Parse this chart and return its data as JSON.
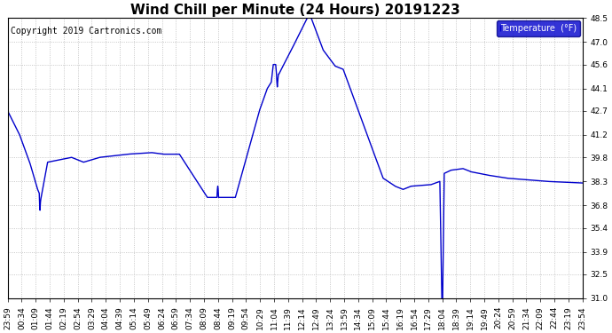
{
  "title": "Wind Chill per Minute (24 Hours) 20191223",
  "copyright": "Copyright 2019 Cartronics.com",
  "legend_label": "Temperature  (°F)",
  "legend_bg": "#0000cc",
  "legend_text_color": "#ffffff",
  "line_color": "#0000cc",
  "bg_color": "#ffffff",
  "plot_bg_color": "#ffffff",
  "grid_color": "#b0b0b0",
  "ylim": [
    31.0,
    48.5
  ],
  "yticks": [
    31.0,
    32.5,
    33.9,
    35.4,
    36.8,
    38.3,
    39.8,
    41.2,
    42.7,
    44.1,
    45.6,
    47.0,
    48.5
  ],
  "xtick_labels": [
    "23:59",
    "00:34",
    "01:09",
    "01:44",
    "02:19",
    "02:54",
    "03:29",
    "04:04",
    "04:39",
    "05:14",
    "05:49",
    "06:24",
    "06:59",
    "07:34",
    "08:09",
    "08:44",
    "09:19",
    "09:54",
    "10:29",
    "11:04",
    "11:39",
    "12:14",
    "12:49",
    "13:24",
    "13:59",
    "14:34",
    "15:09",
    "15:44",
    "16:19",
    "16:54",
    "17:29",
    "18:04",
    "18:39",
    "19:14",
    "19:49",
    "20:24",
    "20:59",
    "21:34",
    "22:09",
    "22:44",
    "23:19",
    "23:54"
  ],
  "title_fontsize": 11,
  "copyright_fontsize": 7,
  "tick_fontsize": 6.5,
  "line_width": 1.0
}
